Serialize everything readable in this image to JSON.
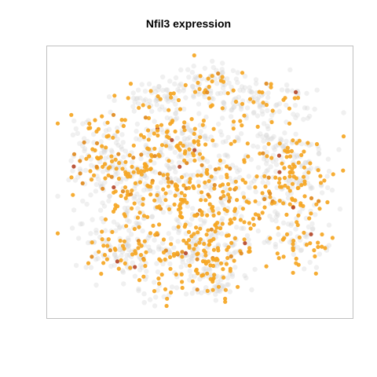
{
  "chart_data": {
    "type": "scatter",
    "title": "Nfil3 expression",
    "xlabel": "",
    "ylabel": "",
    "grid": false,
    "legend": "none",
    "colors": {
      "background_cells": "#d3d3d3",
      "low_expression": "#f5a623",
      "mid_expression": "#e08a1e",
      "high_expression": "#b5482a",
      "frame": "#c0c0c0"
    },
    "expression_scale": "grey (none) to orange to dark red (high)",
    "cell_clusters": [
      {
        "center": [
          0.52,
          0.12
        ],
        "spread": [
          0.06,
          0.05
        ],
        "n_bg": 70,
        "n_expr": 20
      },
      {
        "center": [
          0.35,
          0.17
        ],
        "spread": [
          0.07,
          0.04
        ],
        "n_bg": 60,
        "n_expr": 16
      },
      {
        "center": [
          0.73,
          0.19
        ],
        "spread": [
          0.1,
          0.05
        ],
        "n_bg": 90,
        "n_expr": 24
      },
      {
        "center": [
          0.46,
          0.33
        ],
        "spread": [
          0.07,
          0.05
        ],
        "n_bg": 60,
        "n_expr": 34
      },
      {
        "center": [
          0.78,
          0.36
        ],
        "spread": [
          0.08,
          0.05
        ],
        "n_bg": 60,
        "n_expr": 22
      },
      {
        "center": [
          0.15,
          0.42
        ],
        "spread": [
          0.06,
          0.09
        ],
        "n_bg": 90,
        "n_expr": 46
      },
      {
        "center": [
          0.3,
          0.5
        ],
        "spread": [
          0.09,
          0.11
        ],
        "n_bg": 150,
        "n_expr": 120
      },
      {
        "center": [
          0.55,
          0.55
        ],
        "spread": [
          0.1,
          0.12
        ],
        "n_bg": 150,
        "n_expr": 140
      },
      {
        "center": [
          0.83,
          0.53
        ],
        "spread": [
          0.07,
          0.08
        ],
        "n_bg": 90,
        "n_expr": 80
      },
      {
        "center": [
          0.25,
          0.77
        ],
        "spread": [
          0.09,
          0.06
        ],
        "n_bg": 110,
        "n_expr": 50
      },
      {
        "center": [
          0.5,
          0.78
        ],
        "spread": [
          0.08,
          0.06
        ],
        "n_bg": 90,
        "n_expr": 70
      },
      {
        "center": [
          0.55,
          0.9
        ],
        "spread": [
          0.05,
          0.04
        ],
        "n_bg": 40,
        "n_expr": 24
      },
      {
        "center": [
          0.38,
          0.95
        ],
        "spread": [
          0.05,
          0.03
        ],
        "n_bg": 20,
        "n_expr": 8
      },
      {
        "center": [
          0.85,
          0.74
        ],
        "spread": [
          0.05,
          0.05
        ],
        "n_bg": 40,
        "n_expr": 30
      }
    ],
    "xlim": [
      0,
      1
    ],
    "ylim": [
      0,
      1
    ]
  }
}
